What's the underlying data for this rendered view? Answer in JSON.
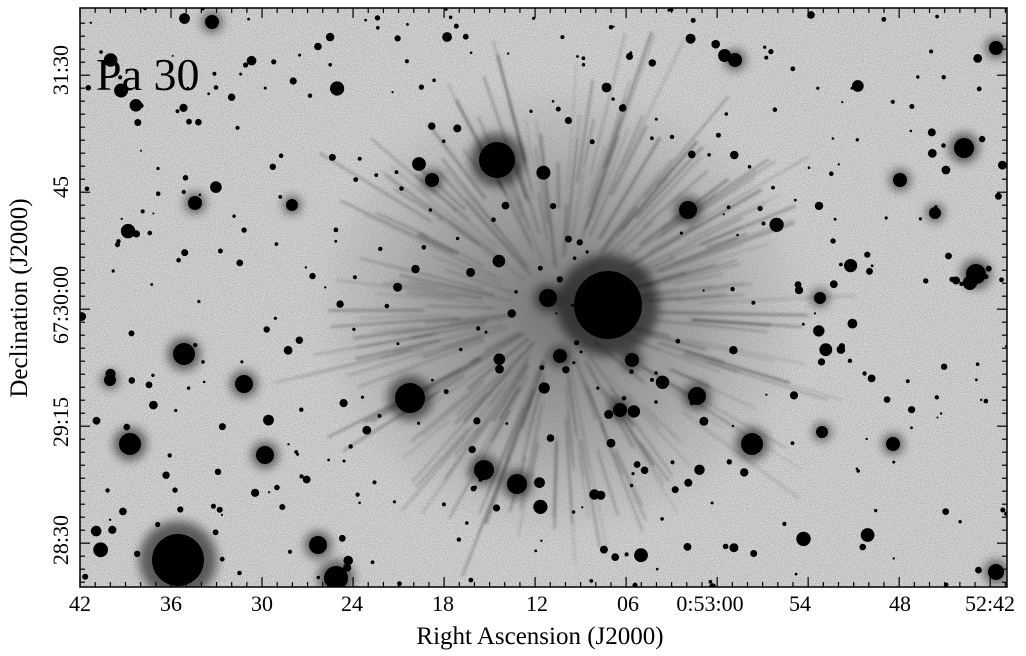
{
  "figure": {
    "label": "Pa 30",
    "xlabel": "Right Ascension (J2000)",
    "ylabel": "Declination (J2000)",
    "xticks": [
      "42",
      "36",
      "30",
      "24",
      "18",
      "12",
      "06",
      "0:53:00",
      "54",
      "48",
      "52:42"
    ],
    "yticks": [
      "31:30",
      "45",
      "67:30:00",
      "29:15",
      "28:30"
    ]
  }
}
